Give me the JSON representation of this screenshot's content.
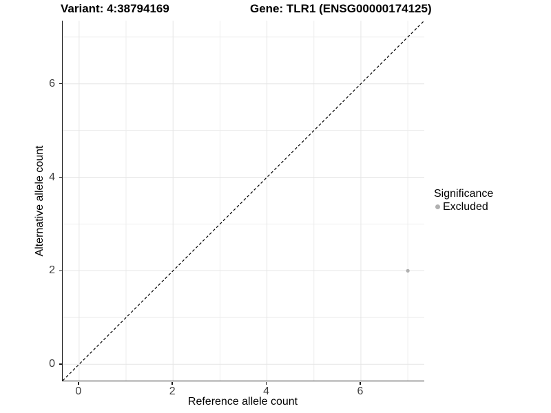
{
  "titles": {
    "variant": "Variant: 4:38794169",
    "gene": "Gene: TLR1 (ENSG00000174125)"
  },
  "axes": {
    "x_label": "Reference allele count",
    "y_label": "Alternative allele count",
    "x_tick_labels": [
      "0",
      "2",
      "4",
      "6"
    ],
    "y_tick_labels": [
      "0",
      "2",
      "4",
      "6"
    ]
  },
  "legend": {
    "title": "Significance",
    "items": [
      {
        "label": "Excluded",
        "color": "#b0b0b0"
      }
    ]
  },
  "chart_data": {
    "type": "scatter",
    "title": "Variant: 4:38794169 | Gene: TLR1 (ENSG00000174125)",
    "xlabel": "Reference allele count",
    "ylabel": "Alternative allele count",
    "xlim": [
      -0.35,
      7.35
    ],
    "ylim": [
      -0.35,
      7.35
    ],
    "x_ticks": [
      0,
      2,
      4,
      6
    ],
    "y_ticks": [
      0,
      2,
      4,
      6
    ],
    "minor_ticks": [
      1,
      3,
      5,
      7
    ],
    "grid": true,
    "legend_position": "right",
    "series": [
      {
        "name": "Excluded",
        "color": "#b0b0b0",
        "points": [
          [
            7,
            2
          ]
        ]
      }
    ],
    "reference_line": {
      "slope": 1,
      "intercept": 0,
      "style": "dashed",
      "color": "#000000"
    },
    "colors": {
      "grid_major": "#e5e5e5",
      "grid_minor": "#ededed",
      "axis_line": "#1a1a1a",
      "tick_label": "#404040",
      "point": "#b0b0b0"
    }
  }
}
